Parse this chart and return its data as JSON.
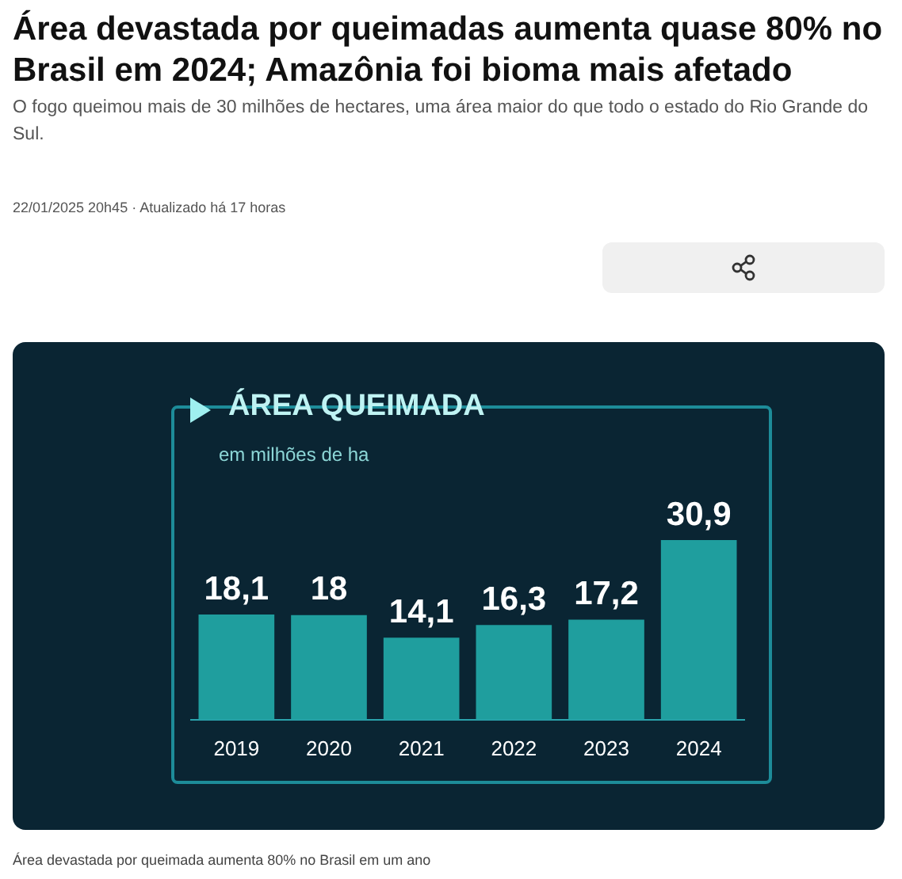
{
  "chart_data": {
    "type": "bar",
    "title": "Área devastada por queimadas aumenta quase 80% no Brasil em 2024; Amazônia foi bioma mais afetado",
    "subtitle": "O fogo queimou mais de 30 milhões de hectares, uma área maior do que todo o estado do Rio Grande do Sul.",
    "annotations": [
      "22/01/2025 20h45 · Atualizado há 17 horas",
      "ÁREA QUEIMADA",
      "Área devastada por queimada aumenta 80% no Brasil em um ano"
    ],
    "ylabel": "em milhões de ha",
    "categories": [
      "2019",
      "2020",
      "2021",
      "2022",
      "2023",
      "2024"
    ],
    "values": [
      18.1,
      18,
      14.1,
      16.3,
      17.2,
      30.9
    ],
    "color": "#1f9e9e",
    "value_labels": [
      "18,1",
      "18",
      "14,1",
      "16,3",
      "17,2",
      "30,9"
    ],
    "grid": false,
    "legend": false
  }
}
